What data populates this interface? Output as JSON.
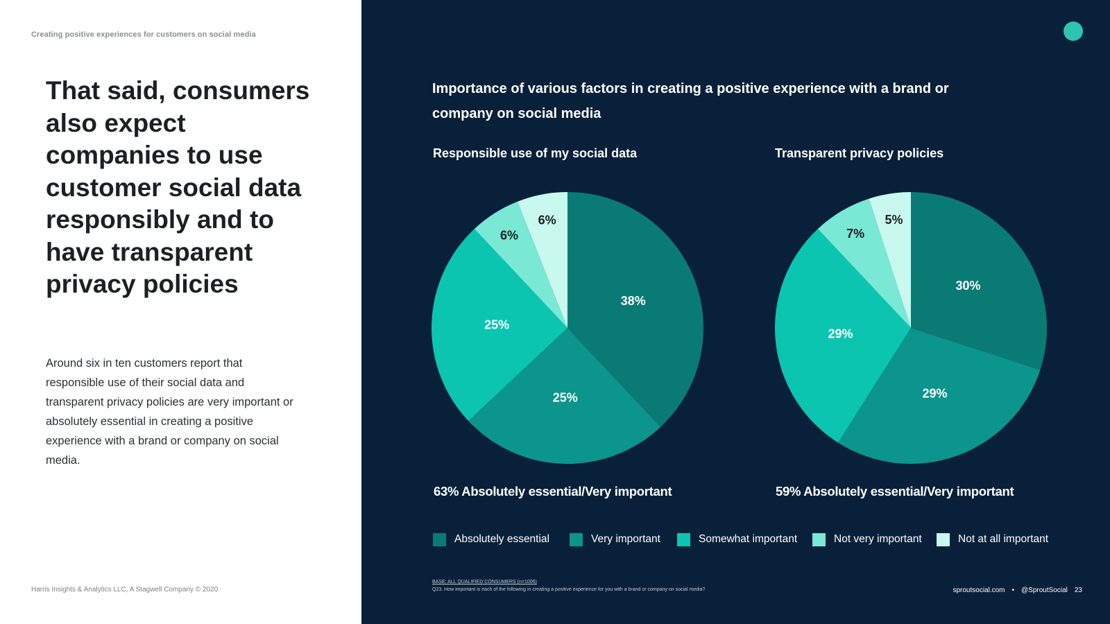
{
  "left": {
    "header": "Creating positive experiences for customers on social media",
    "headline": "That said, consumers also expect companies to use customer social data responsibly and to have transparent privacy policies",
    "body": "Around six in ten customers report that responsible use of their social data and transparent privacy policies are very important or absolutely essential in creating a positive experience with a brand or company on social media.",
    "footer": "Harris Insights & Analytics LLC, A Stagwell Company © 2020"
  },
  "right": {
    "footer_site": "sproutsocial.com",
    "footer_sep": "•",
    "footer_handle": "@SproutSocial",
    "page_number": "23",
    "base_note": "BASE: ALL QUALIFIED CONSUMERS (n=1006)",
    "question_note": "Q23. How important is each of the following in creating a positive experience for you with a brand or company on social media?"
  },
  "colors": {
    "Absolutely essential": "#0a7b74",
    "Very important": "#0b958c",
    "Somewhat important": "#0bc5b1",
    "Not very important": "#79e8d4",
    "Not at all important": "#c9f8ef"
  },
  "chart_data": {
    "title": "Importance of various factors in creating a positive experience with a brand or company on social media",
    "legend": [
      "Absolutely essential",
      "Very important",
      "Somewhat important",
      "Not very important",
      "Not at all important"
    ],
    "charts": [
      {
        "type": "pie",
        "title": "Responsible use of my social data",
        "labels": [
          "Absolutely essential",
          "Very important",
          "Somewhat important",
          "Not very important",
          "Not at all important"
        ],
        "values": [
          38,
          25,
          25,
          6,
          6
        ],
        "value_labels": [
          "38%",
          "25%",
          "25%",
          "6%",
          "6%"
        ],
        "summary": "63% Absolutely essential/Very important"
      },
      {
        "type": "pie",
        "title": "Transparent privacy policies",
        "labels": [
          "Absolutely essential",
          "Very important",
          "Somewhat important",
          "Not very important",
          "Not at all important"
        ],
        "values": [
          30,
          29,
          29,
          7,
          5
        ],
        "value_labels": [
          "30%",
          "29%",
          "29%",
          "7%",
          "5%"
        ],
        "summary": "59% Absolutely essential/Very important"
      }
    ]
  }
}
